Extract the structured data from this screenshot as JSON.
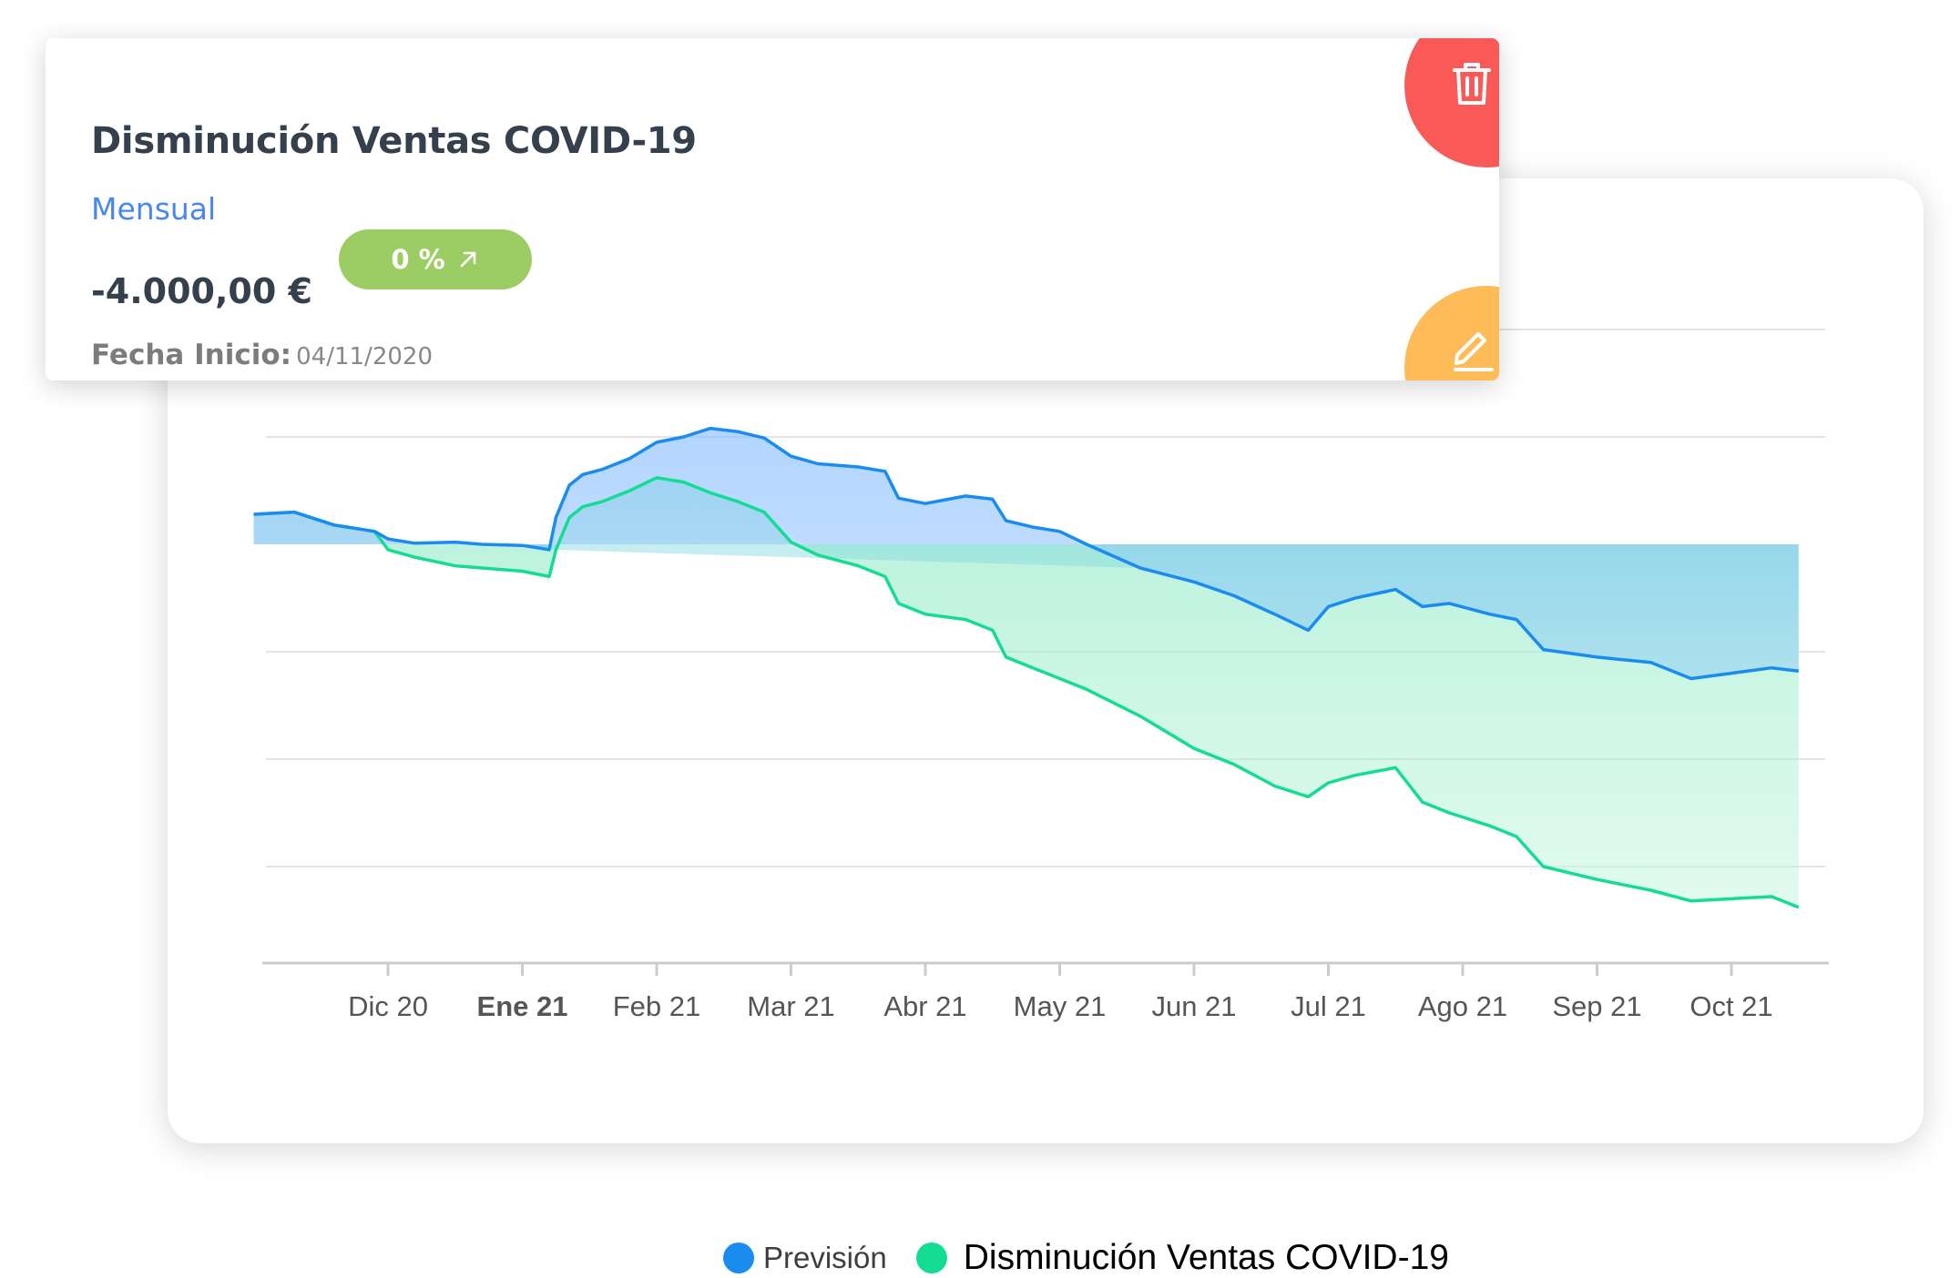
{
  "card": {
    "title": "Disminución Ventas COVID-19",
    "frequency": "Mensual",
    "amount": "-4.000,00 €",
    "percent_badge": "0 %",
    "start_date_label": "Fecha Inicio:",
    "start_date_value": "04/11/2020",
    "delete_icon": "trash-icon",
    "edit_icon": "pencil-icon",
    "badge_icon": "arrow-up-right-icon"
  },
  "colors": {
    "forecast": "#1a8cf0",
    "decrease": "#14dc92",
    "badge": "#9ccd64",
    "delete": "#fa5a57",
    "edit": "#ffbb57",
    "link": "#4a86f0"
  },
  "chart_data": {
    "type": "area",
    "x_tick_labels": [
      "Dic 20",
      "Ene 21",
      "Feb 21",
      "Mar 21",
      "Abr 21",
      "May 21",
      "Jun 21",
      "Jul 21",
      "Ago 21",
      "Sep 21",
      "Oct 21"
    ],
    "x_tick_bold": "Ene 21",
    "x_range": [
      "Nov 20",
      "Oct 21"
    ],
    "ylim": [
      -3.9,
      2.0
    ],
    "gridlines": [
      2.0,
      1.0,
      -1.0,
      -2.0,
      -3.0
    ],
    "baseline": 0,
    "grid": true,
    "legend_position": "bottom-center",
    "series": [
      {
        "name": "Previsión",
        "color": "#1a8cf0",
        "points": [
          [
            0.0,
            0.28
          ],
          [
            0.3,
            0.3
          ],
          [
            0.6,
            0.18
          ],
          [
            0.9,
            0.12
          ],
          [
            1.0,
            0.05
          ],
          [
            1.2,
            0.01
          ],
          [
            1.5,
            0.02
          ],
          [
            1.7,
            0.0
          ],
          [
            2.0,
            -0.01
          ],
          [
            2.2,
            -0.05
          ],
          [
            2.25,
            0.25
          ],
          [
            2.35,
            0.55
          ],
          [
            2.45,
            0.65
          ],
          [
            2.6,
            0.7
          ],
          [
            2.8,
            0.8
          ],
          [
            3.0,
            0.95
          ],
          [
            3.2,
            1.0
          ],
          [
            3.4,
            1.08
          ],
          [
            3.6,
            1.05
          ],
          [
            3.8,
            0.99
          ],
          [
            4.0,
            0.82
          ],
          [
            4.2,
            0.75
          ],
          [
            4.5,
            0.72
          ],
          [
            4.7,
            0.68
          ],
          [
            4.8,
            0.43
          ],
          [
            5.0,
            0.38
          ],
          [
            5.3,
            0.45
          ],
          [
            5.5,
            0.42
          ],
          [
            5.6,
            0.22
          ],
          [
            5.8,
            0.16
          ],
          [
            6.0,
            0.12
          ],
          [
            6.2,
            0.0
          ],
          [
            6.6,
            -0.22
          ],
          [
            7.0,
            -0.35
          ],
          [
            7.3,
            -0.48
          ],
          [
            7.6,
            -0.65
          ],
          [
            7.85,
            -0.8
          ],
          [
            8.0,
            -0.58
          ],
          [
            8.2,
            -0.5
          ],
          [
            8.5,
            -0.42
          ],
          [
            8.7,
            -0.58
          ],
          [
            8.9,
            -0.55
          ],
          [
            9.2,
            -0.65
          ],
          [
            9.4,
            -0.7
          ],
          [
            9.6,
            -0.98
          ],
          [
            10.0,
            -1.05
          ],
          [
            10.4,
            -1.1
          ],
          [
            10.7,
            -1.25
          ],
          [
            11.0,
            -1.2
          ],
          [
            11.3,
            -1.15
          ],
          [
            11.5,
            -1.18
          ]
        ]
      },
      {
        "name": "Disminución Ventas COVID-19",
        "color": "#14dc92",
        "points": [
          [
            0.0,
            0.28
          ],
          [
            0.3,
            0.3
          ],
          [
            0.6,
            0.18
          ],
          [
            0.9,
            0.12
          ],
          [
            1.0,
            -0.05
          ],
          [
            1.2,
            -0.12
          ],
          [
            1.5,
            -0.2
          ],
          [
            1.7,
            -0.22
          ],
          [
            2.0,
            -0.25
          ],
          [
            2.2,
            -0.3
          ],
          [
            2.25,
            -0.05
          ],
          [
            2.35,
            0.25
          ],
          [
            2.45,
            0.35
          ],
          [
            2.6,
            0.4
          ],
          [
            2.8,
            0.5
          ],
          [
            3.0,
            0.62
          ],
          [
            3.2,
            0.58
          ],
          [
            3.4,
            0.48
          ],
          [
            3.6,
            0.4
          ],
          [
            3.8,
            0.3
          ],
          [
            4.0,
            0.02
          ],
          [
            4.2,
            -0.1
          ],
          [
            4.5,
            -0.2
          ],
          [
            4.7,
            -0.3
          ],
          [
            4.8,
            -0.55
          ],
          [
            5.0,
            -0.65
          ],
          [
            5.3,
            -0.7
          ],
          [
            5.5,
            -0.8
          ],
          [
            5.6,
            -1.05
          ],
          [
            5.8,
            -1.15
          ],
          [
            6.0,
            -1.25
          ],
          [
            6.2,
            -1.35
          ],
          [
            6.6,
            -1.6
          ],
          [
            7.0,
            -1.9
          ],
          [
            7.3,
            -2.05
          ],
          [
            7.6,
            -2.25
          ],
          [
            7.85,
            -2.35
          ],
          [
            8.0,
            -2.22
          ],
          [
            8.2,
            -2.15
          ],
          [
            8.5,
            -2.08
          ],
          [
            8.7,
            -2.4
          ],
          [
            8.9,
            -2.5
          ],
          [
            9.2,
            -2.62
          ],
          [
            9.4,
            -2.72
          ],
          [
            9.6,
            -3.0
          ],
          [
            10.0,
            -3.12
          ],
          [
            10.4,
            -3.22
          ],
          [
            10.7,
            -3.32
          ],
          [
            11.0,
            -3.3
          ],
          [
            11.3,
            -3.28
          ],
          [
            11.5,
            -3.38
          ]
        ]
      }
    ]
  }
}
